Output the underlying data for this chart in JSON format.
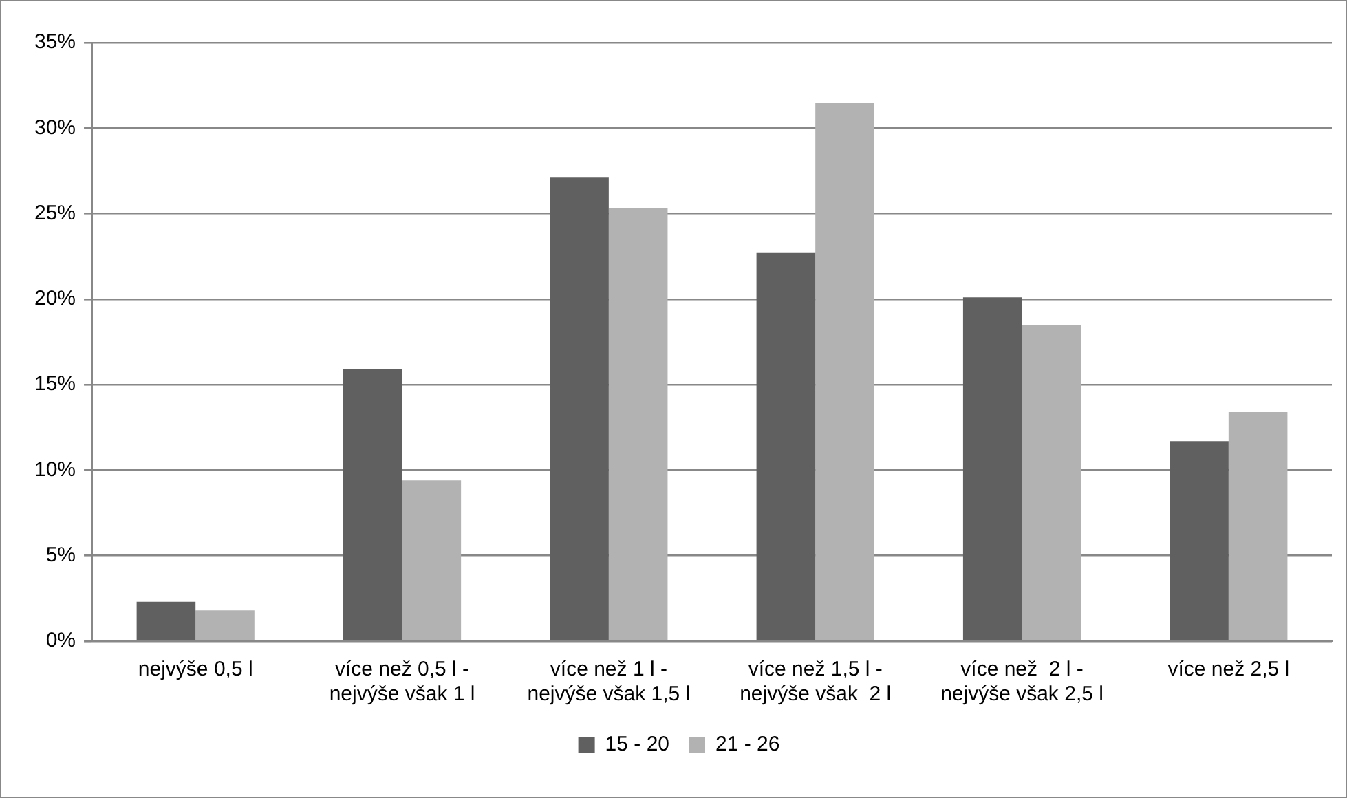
{
  "chart_data": {
    "type": "bar",
    "categories": [
      "nejvýše 0,5 l",
      "více než 0,5 l - nejvýše však 1 l",
      "více než 1 l - nejvýše však 1,5 l",
      "více než 1,5 l - nejvýše však  2 l",
      "více než  2 l - nejvýše však 2,5 l",
      "více než 2,5 l"
    ],
    "series": [
      {
        "name": "15 - 20",
        "color": "#606060",
        "values": [
          2.3,
          15.9,
          27.1,
          22.7,
          20.1,
          11.7
        ]
      },
      {
        "name": "21 - 26",
        "color": "#b2b2b2",
        "values": [
          1.8,
          9.4,
          25.3,
          31.5,
          18.5,
          13.4
        ]
      }
    ],
    "ylim": [
      0,
      35
    ],
    "yticks": [
      {
        "value": 0,
        "label": "0%"
      },
      {
        "value": 5,
        "label": "5%"
      },
      {
        "value": 10,
        "label": "10%"
      },
      {
        "value": 15,
        "label": "15%"
      },
      {
        "value": 20,
        "label": "20%"
      },
      {
        "value": 25,
        "label": "25%"
      },
      {
        "value": 30,
        "label": "30%"
      },
      {
        "value": 35,
        "label": "35%"
      }
    ],
    "grid": "y",
    "legend": "bottom"
  }
}
